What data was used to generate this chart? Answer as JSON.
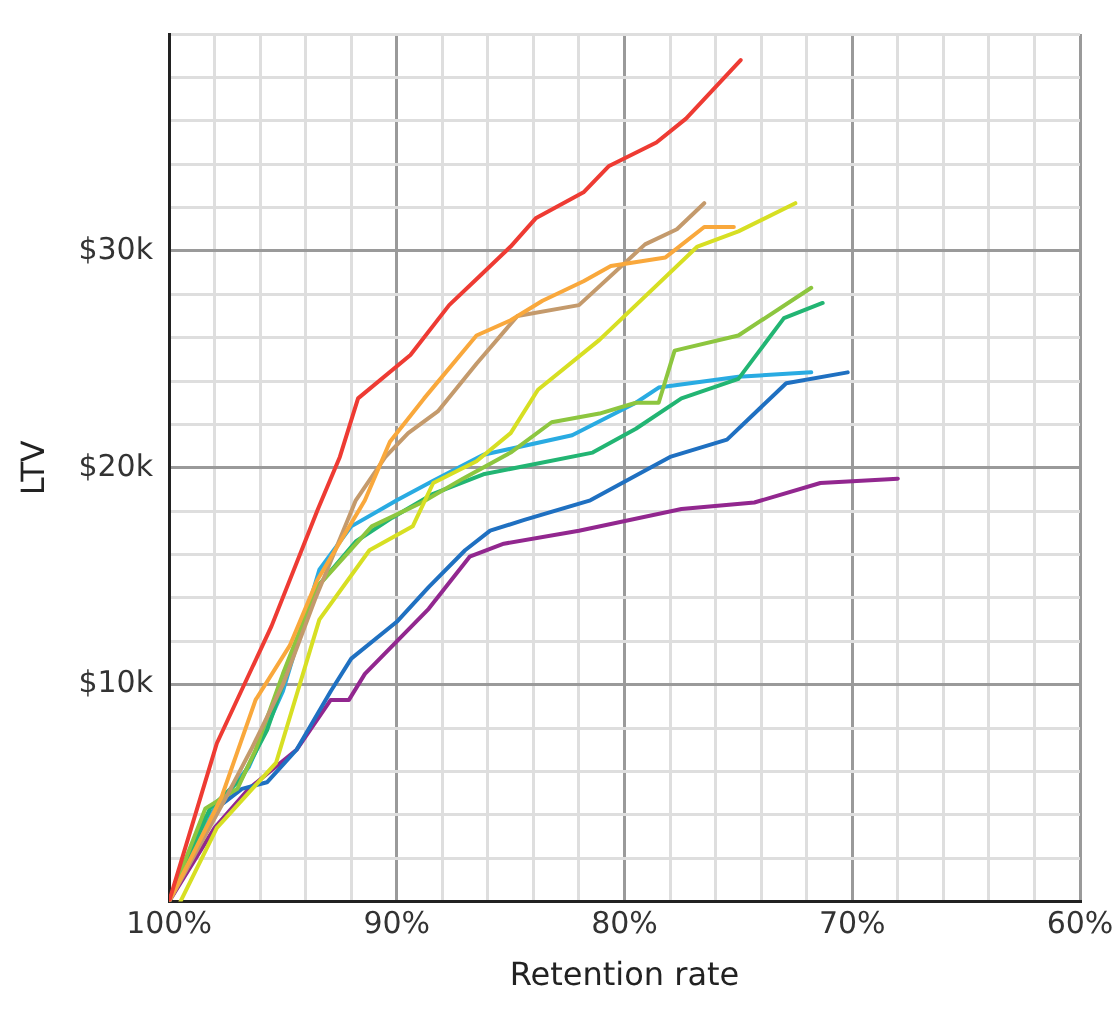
{
  "chart_data": {
    "type": "line",
    "xlabel": "Retention rate",
    "ylabel": "LTV",
    "xlim": [
      100,
      60
    ],
    "ylim": [
      0,
      40000
    ],
    "xticks": [
      {
        "value": 100,
        "label": "100%"
      },
      {
        "value": 98,
        "label": null
      },
      {
        "value": 96,
        "label": null
      },
      {
        "value": 94,
        "label": null
      },
      {
        "value": 92,
        "label": null
      },
      {
        "value": 90,
        "label": "90%"
      },
      {
        "value": 88,
        "label": null
      },
      {
        "value": 86,
        "label": null
      },
      {
        "value": 84,
        "label": null
      },
      {
        "value": 82,
        "label": null
      },
      {
        "value": 80,
        "label": "80%"
      },
      {
        "value": 78,
        "label": null
      },
      {
        "value": 76,
        "label": null
      },
      {
        "value": 74,
        "label": null
      },
      {
        "value": 72,
        "label": null
      },
      {
        "value": 70,
        "label": "70%"
      },
      {
        "value": 68,
        "label": null
      },
      {
        "value": 66,
        "label": null
      },
      {
        "value": 64,
        "label": null
      },
      {
        "value": 62,
        "label": null
      },
      {
        "value": 60,
        "label": "60%"
      }
    ],
    "yticks": [
      {
        "value": 0,
        "label": null
      },
      {
        "value": 2000,
        "label": null
      },
      {
        "value": 4000,
        "label": null
      },
      {
        "value": 6000,
        "label": null
      },
      {
        "value": 8000,
        "label": null
      },
      {
        "value": 10000,
        "label": "$10k"
      },
      {
        "value": 12000,
        "label": null
      },
      {
        "value": 14000,
        "label": null
      },
      {
        "value": 16000,
        "label": null
      },
      {
        "value": 18000,
        "label": null
      },
      {
        "value": 20000,
        "label": "$20k"
      },
      {
        "value": 22000,
        "label": null
      },
      {
        "value": 24000,
        "label": null
      },
      {
        "value": 26000,
        "label": null
      },
      {
        "value": 28000,
        "label": null
      },
      {
        "value": 30000,
        "label": "$30k"
      },
      {
        "value": 32000,
        "label": null
      },
      {
        "value": 34000,
        "label": null
      },
      {
        "value": 36000,
        "label": null
      },
      {
        "value": 38000,
        "label": null
      },
      {
        "value": 40000,
        "label": null
      }
    ],
    "grid": true,
    "legend": false,
    "marker": "none",
    "line_style": "solid",
    "series": [
      {
        "color": "#ee3b33",
        "x": [
          100,
          97.9,
          95.5,
          93.5,
          92.5,
          91.7,
          89.4,
          87.7,
          86.4,
          85.0,
          83.9,
          81.8,
          80.7,
          78.6,
          77.3,
          74.9
        ],
        "values": [
          0,
          7300,
          12700,
          18000,
          20500,
          23200,
          25200,
          27500,
          28800,
          30200,
          31500,
          32700,
          33900,
          35000,
          36100,
          38800
        ]
      },
      {
        "color": "#f9a83c",
        "x": [
          100,
          97.7,
          96.2,
          94.7,
          93.5,
          91.4,
          90.3,
          88.8,
          86.5,
          85.0,
          83.6,
          81.8,
          80.6,
          78.2,
          76.5,
          75.2
        ],
        "values": [
          0,
          4800,
          9300,
          11800,
          14800,
          18500,
          21200,
          23200,
          26100,
          26800,
          27700,
          28600,
          29300,
          29700,
          31100,
          31100
        ]
      },
      {
        "color": "#c49a6c",
        "x": [
          100,
          97.5,
          96.4,
          95.0,
          93.6,
          91.8,
          90.5,
          89.5,
          88.2,
          86.5,
          84.7,
          82.0,
          79.1,
          77.7,
          76.5
        ],
        "values": [
          0,
          4800,
          7000,
          10000,
          13900,
          18500,
          20500,
          21600,
          22600,
          24800,
          27000,
          27500,
          30300,
          31000,
          32200
        ]
      },
      {
        "color": "#d7df23",
        "x": [
          99.5,
          97.9,
          95.3,
          93.4,
          91.2,
          89.3,
          88.4,
          86.5,
          85.0,
          83.8,
          81.1,
          76.8,
          75.0,
          72.5
        ],
        "values": [
          0,
          3400,
          6400,
          13000,
          16200,
          17300,
          19300,
          20300,
          21600,
          23600,
          25900,
          30200,
          30900,
          32200
        ]
      },
      {
        "color": "#8dc63f",
        "x": [
          100,
          98.4,
          97.0,
          96.2,
          95.0,
          93.5,
          91.1,
          88.9,
          87.1,
          85.0,
          83.2,
          81.1,
          79.5,
          78.5,
          77.8,
          75.0,
          71.8
        ],
        "values": [
          0,
          4300,
          5200,
          7000,
          10500,
          14500,
          17300,
          18400,
          19500,
          20700,
          22100,
          22500,
          23000,
          23000,
          25400,
          26100,
          28300
        ]
      },
      {
        "color": "#22b573",
        "x": [
          100,
          98.2,
          96.8,
          95.7,
          94.8,
          93.5,
          91.8,
          90.2,
          88.4,
          86.2,
          81.4,
          79.5,
          77.5,
          75.0,
          73.0,
          71.3
        ],
        "values": [
          0,
          4300,
          5700,
          7900,
          10600,
          14500,
          16600,
          17700,
          18800,
          19700,
          20700,
          21800,
          23200,
          24100,
          26900,
          27600
        ]
      },
      {
        "color": "#29abe2",
        "x": [
          100,
          98.0,
          96.5,
          95.0,
          93.4,
          92.0,
          90.0,
          88.4,
          86.2,
          82.3,
          79.5,
          78.5,
          75.0,
          71.8
        ],
        "values": [
          0,
          4300,
          6200,
          9700,
          15300,
          17300,
          18500,
          19400,
          20600,
          21500,
          23000,
          23700,
          24200,
          24400
        ]
      },
      {
        "color": "#1f70c1",
        "x": [
          100,
          98.4,
          96.8,
          95.7,
          94.4,
          92.9,
          92.0,
          90.0,
          88.6,
          87.0,
          85.9,
          84.4,
          81.5,
          78.0,
          75.5,
          72.9,
          70.2
        ],
        "values": [
          0,
          3900,
          5200,
          5500,
          7000,
          9700,
          11200,
          12900,
          14500,
          16200,
          17100,
          17600,
          18500,
          20500,
          21300,
          23900,
          24400
        ]
      },
      {
        "color": "#92278f",
        "x": [
          100,
          98.0,
          96.5,
          94.4,
          92.9,
          92.1,
          91.4,
          88.6,
          86.8,
          85.3,
          82.0,
          77.5,
          74.3,
          71.4,
          68.0
        ],
        "values": [
          0,
          3400,
          5200,
          7000,
          9300,
          9300,
          10500,
          13500,
          15900,
          16500,
          17100,
          18100,
          18400,
          19300,
          19500
        ]
      }
    ]
  }
}
